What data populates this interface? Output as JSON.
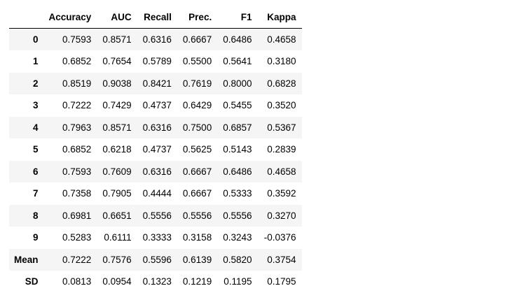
{
  "table": {
    "columns": [
      "",
      "Accuracy",
      "AUC",
      "Recall",
      "Prec.",
      "F1",
      "Kappa"
    ],
    "rows": [
      {
        "index": "0",
        "values": [
          "0.7593",
          "0.8571",
          "0.6316",
          "0.6667",
          "0.6486",
          "0.4658"
        ]
      },
      {
        "index": "1",
        "values": [
          "0.6852",
          "0.7654",
          "0.5789",
          "0.5500",
          "0.5641",
          "0.3180"
        ]
      },
      {
        "index": "2",
        "values": [
          "0.8519",
          "0.9038",
          "0.8421",
          "0.7619",
          "0.8000",
          "0.6828"
        ]
      },
      {
        "index": "3",
        "values": [
          "0.7222",
          "0.7429",
          "0.4737",
          "0.6429",
          "0.5455",
          "0.3520"
        ]
      },
      {
        "index": "4",
        "values": [
          "0.7963",
          "0.8571",
          "0.6316",
          "0.7500",
          "0.6857",
          "0.5367"
        ]
      },
      {
        "index": "5",
        "values": [
          "0.6852",
          "0.6218",
          "0.4737",
          "0.5625",
          "0.5143",
          "0.2839"
        ]
      },
      {
        "index": "6",
        "values": [
          "0.7593",
          "0.7609",
          "0.6316",
          "0.6667",
          "0.6486",
          "0.4658"
        ]
      },
      {
        "index": "7",
        "values": [
          "0.7358",
          "0.7905",
          "0.4444",
          "0.6667",
          "0.5333",
          "0.3592"
        ]
      },
      {
        "index": "8",
        "values": [
          "0.6981",
          "0.6651",
          "0.5556",
          "0.5556",
          "0.5556",
          "0.3270"
        ]
      },
      {
        "index": "9",
        "values": [
          "0.5283",
          "0.6111",
          "0.3333",
          "0.3158",
          "0.3243",
          "-0.0376"
        ]
      },
      {
        "index": "Mean",
        "values": [
          "0.7222",
          "0.7576",
          "0.5596",
          "0.6139",
          "0.5820",
          "0.3754"
        ]
      },
      {
        "index": "SD",
        "values": [
          "0.0813",
          "0.0954",
          "0.1323",
          "0.1219",
          "0.1195",
          "0.1795"
        ]
      }
    ]
  }
}
